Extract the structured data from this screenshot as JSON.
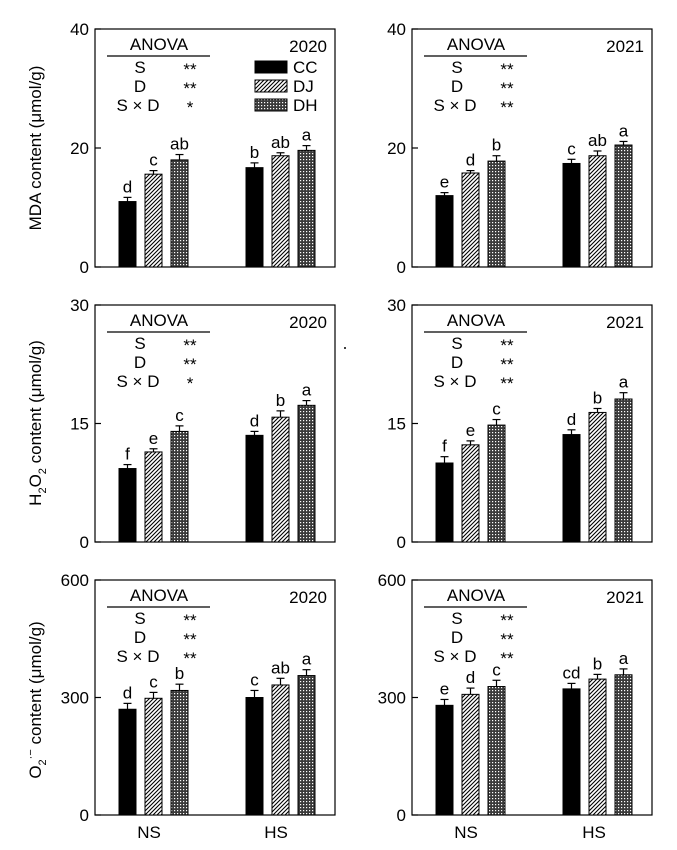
{
  "panel_order": [
    "mda_2020",
    "mda_2021",
    "h2o2_2020",
    "h2o2_2021",
    "o2_2020",
    "o2_2021"
  ],
  "x_categories": [
    "NS",
    "HS"
  ],
  "legend": [
    {
      "name": "CC",
      "pattern": "solid"
    },
    {
      "name": "DJ",
      "pattern": "hatched"
    },
    {
      "name": "DH",
      "pattern": "dotted"
    }
  ],
  "ylabels": {
    "mda": "MDA content (μmol/g)",
    "h2o2_prefix": "H",
    "h2o2_sub1": "2",
    "h2o2_mid": "O",
    "h2o2_sub2": "2",
    "h2o2_suffix": " content (μmol/g)",
    "o2_prefix": "O",
    "o2_sub": "2",
    "o2_sup": "·−",
    "o2_suffix": " content (μmol/g)"
  },
  "colors": {
    "bar": "#000000",
    "background": "#ffffff"
  },
  "chart_data": [
    {
      "id": "mda_2020",
      "type": "bar",
      "year": "2020",
      "ylim": [
        0,
        40
      ],
      "yticks": [
        0,
        20,
        40
      ],
      "categories": [
        "NS",
        "HS"
      ],
      "anova": {
        "title": "ANOVA",
        "rows": [
          {
            "label": "S",
            "sig": "**"
          },
          {
            "label": "D",
            "sig": "**"
          },
          {
            "label": "S × D",
            "sig": "*"
          }
        ]
      },
      "series": [
        {
          "name": "CC",
          "values": [
            11.0,
            16.7
          ],
          "errors": [
            0.7,
            0.8
          ],
          "letters": [
            "d",
            "b"
          ]
        },
        {
          "name": "DJ",
          "values": [
            15.6,
            18.7
          ],
          "errors": [
            0.6,
            0.5
          ],
          "letters": [
            "c",
            "ab"
          ]
        },
        {
          "name": "DH",
          "values": [
            18.0,
            19.6
          ],
          "errors": [
            0.9,
            0.8
          ],
          "letters": [
            "ab",
            "a"
          ]
        }
      ]
    },
    {
      "id": "mda_2021",
      "type": "bar",
      "year": "2021",
      "ylim": [
        0,
        40
      ],
      "yticks": [
        0,
        20,
        40
      ],
      "categories": [
        "NS",
        "HS"
      ],
      "anova": {
        "title": "ANOVA",
        "rows": [
          {
            "label": "S",
            "sig": "**"
          },
          {
            "label": "D",
            "sig": "**"
          },
          {
            "label": "S × D",
            "sig": "**"
          }
        ]
      },
      "series": [
        {
          "name": "CC",
          "values": [
            12.0,
            17.4
          ],
          "errors": [
            0.5,
            0.7
          ],
          "letters": [
            "e",
            "c"
          ]
        },
        {
          "name": "DJ",
          "values": [
            15.8,
            18.7
          ],
          "errors": [
            0.4,
            0.8
          ],
          "letters": [
            "d",
            "ab"
          ]
        },
        {
          "name": "DH",
          "values": [
            17.8,
            20.5
          ],
          "errors": [
            0.9,
            0.6
          ],
          "letters": [
            "b",
            "a"
          ]
        }
      ]
    },
    {
      "id": "h2o2_2020",
      "type": "bar",
      "year": "2020",
      "ylim": [
        0,
        30
      ],
      "yticks": [
        0,
        15,
        30
      ],
      "categories": [
        "NS",
        "HS"
      ],
      "anova": {
        "title": "ANOVA",
        "rows": [
          {
            "label": "S",
            "sig": "**"
          },
          {
            "label": "D",
            "sig": "**"
          },
          {
            "label": "S × D",
            "sig": "*"
          }
        ]
      },
      "series": [
        {
          "name": "CC",
          "values": [
            9.3,
            13.5
          ],
          "errors": [
            0.5,
            0.5
          ],
          "letters": [
            "f",
            "d"
          ]
        },
        {
          "name": "DJ",
          "values": [
            11.4,
            15.8
          ],
          "errors": [
            0.4,
            0.8
          ],
          "letters": [
            "e",
            "b"
          ]
        },
        {
          "name": "DH",
          "values": [
            14.0,
            17.3
          ],
          "errors": [
            0.7,
            0.6
          ],
          "letters": [
            "c",
            "a"
          ]
        }
      ]
    },
    {
      "id": "h2o2_2021",
      "type": "bar",
      "year": "2021",
      "ylim": [
        0,
        30
      ],
      "yticks": [
        0,
        15,
        30
      ],
      "categories": [
        "NS",
        "HS"
      ],
      "anova": {
        "title": "ANOVA",
        "rows": [
          {
            "label": "S",
            "sig": "**"
          },
          {
            "label": "D",
            "sig": "**"
          },
          {
            "label": "S × D",
            "sig": "**"
          }
        ]
      },
      "series": [
        {
          "name": "CC",
          "values": [
            10.0,
            13.6
          ],
          "errors": [
            0.8,
            0.6
          ],
          "letters": [
            "f",
            "d"
          ]
        },
        {
          "name": "DJ",
          "values": [
            12.3,
            16.4
          ],
          "errors": [
            0.5,
            0.5
          ],
          "letters": [
            "e",
            "b"
          ]
        },
        {
          "name": "DH",
          "values": [
            14.8,
            18.1
          ],
          "errors": [
            0.7,
            0.8
          ],
          "letters": [
            "c",
            "a"
          ]
        }
      ]
    },
    {
      "id": "o2_2020",
      "type": "bar",
      "year": "2020",
      "ylim": [
        0,
        600
      ],
      "yticks": [
        0,
        300,
        600
      ],
      "categories": [
        "NS",
        "HS"
      ],
      "anova": {
        "title": "ANOVA",
        "rows": [
          {
            "label": "S",
            "sig": "**"
          },
          {
            "label": "D",
            "sig": "**"
          },
          {
            "label": "S × D",
            "sig": "**"
          }
        ]
      },
      "series": [
        {
          "name": "CC",
          "values": [
            270,
            300
          ],
          "errors": [
            15,
            18
          ],
          "letters": [
            "d",
            "c"
          ]
        },
        {
          "name": "DJ",
          "values": [
            298,
            332
          ],
          "errors": [
            15,
            17
          ],
          "letters": [
            "c",
            "ab"
          ]
        },
        {
          "name": "DH",
          "values": [
            318,
            356
          ],
          "errors": [
            16,
            15
          ],
          "letters": [
            "b",
            "a"
          ]
        }
      ]
    },
    {
      "id": "o2_2021",
      "type": "bar",
      "year": "2021",
      "ylim": [
        0,
        600
      ],
      "yticks": [
        0,
        300,
        600
      ],
      "categories": [
        "NS",
        "HS"
      ],
      "anova": {
        "title": "ANOVA",
        "rows": [
          {
            "label": "S",
            "sig": "**"
          },
          {
            "label": "D",
            "sig": "**"
          },
          {
            "label": "S × D",
            "sig": "**"
          }
        ]
      },
      "series": [
        {
          "name": "CC",
          "values": [
            280,
            322
          ],
          "errors": [
            15,
            14
          ],
          "letters": [
            "e",
            "cd"
          ]
        },
        {
          "name": "DJ",
          "values": [
            308,
            347
          ],
          "errors": [
            16,
            12
          ],
          "letters": [
            "d",
            "b"
          ]
        },
        {
          "name": "DH",
          "values": [
            328,
            358
          ],
          "errors": [
            16,
            15
          ],
          "letters": [
            "c",
            "a"
          ]
        }
      ]
    }
  ]
}
